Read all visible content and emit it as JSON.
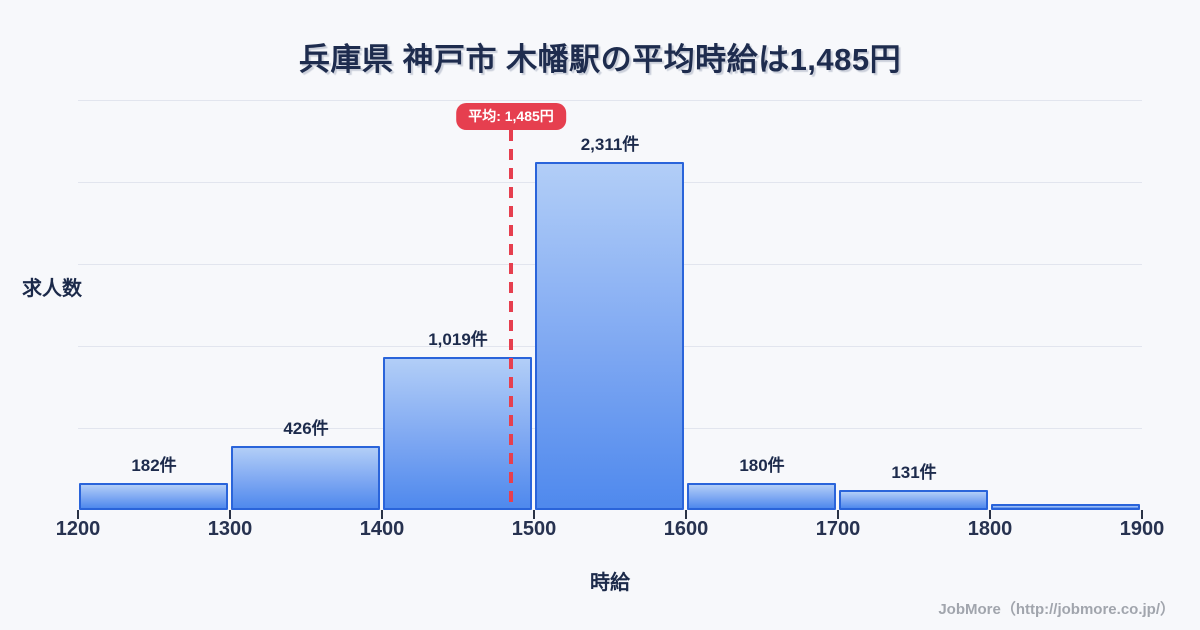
{
  "page": {
    "title": "兵庫県 神戸市 木幡駅の平均時給は1,485円",
    "footer": "JobMore（http://jobmore.co.jp/）"
  },
  "colors": {
    "background": "#f7f8fb",
    "title_text": "#1e2c4e",
    "bar_border": "#2a64da",
    "bar_fill_top": "#b2cef7",
    "bar_fill_bottom": "#4f89ed",
    "average_red": "#e63f4f",
    "gridline": "#e2e5ee",
    "axis_text": "#273250",
    "footer_text": "#a1a5ad"
  },
  "chart_data": {
    "type": "bar",
    "title": "兵庫県 神戸市 木幡駅の平均時給は1,485円",
    "xlabel": "時給",
    "ylabel": "求人数",
    "x_ticks": [
      "1200",
      "1300",
      "1400",
      "1500",
      "1600",
      "1700",
      "1800",
      "1900"
    ],
    "xlim": [
      1200,
      1900
    ],
    "ylim": [
      0,
      2760
    ],
    "grid": "horizontal",
    "legend": false,
    "bins": [
      {
        "x0": 1200,
        "x1": 1300,
        "count": 182,
        "label": "182件"
      },
      {
        "x0": 1300,
        "x1": 1400,
        "count": 426,
        "label": "426件"
      },
      {
        "x0": 1400,
        "x1": 1500,
        "count": 1019,
        "label": "1,019件"
      },
      {
        "x0": 1500,
        "x1": 1600,
        "count": 2311,
        "label": "2,311件"
      },
      {
        "x0": 1600,
        "x1": 1700,
        "count": 180,
        "label": "180件"
      },
      {
        "x0": 1700,
        "x1": 1800,
        "count": 131,
        "label": "131件"
      },
      {
        "x0": 1800,
        "x1": 1900,
        "count": 40,
        "label": "",
        "estimated": true
      }
    ],
    "average": {
      "value": 1485,
      "label": "平均: 1,485円"
    }
  }
}
